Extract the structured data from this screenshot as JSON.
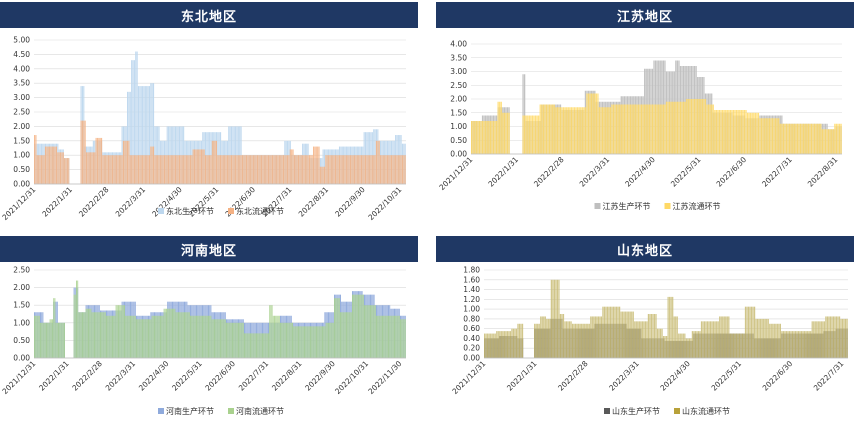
{
  "chart_data": [
    {
      "type": "bar",
      "title": "东北地区",
      "ylim": [
        0,
        5
      ],
      "yticks": [
        "0.00",
        "0.50",
        "1.00",
        "1.50",
        "2.00",
        "2.50",
        "3.00",
        "3.50",
        "4.00",
        "4.50",
        "5.00"
      ],
      "xticks": [
        "2021/12/31",
        "2022/1/31",
        "2022/2/28",
        "2022/3/31",
        "2022/4/30",
        "2022/5/31",
        "2022/6/30",
        "2022/7/31",
        "2022/8/31",
        "2022/9/30",
        "2022/10/31"
      ],
      "legend": "bottom",
      "series": [
        {
          "name": "东北生产环节",
          "color": "#bdd7ee",
          "segments": [
            [
              0,
              1.4
            ],
            [
              9,
              1.4
            ],
            [
              18,
              1.2
            ],
            [
              22,
              0.9
            ],
            [
              24,
              0.9
            ],
            [
              26,
              0
            ],
            [
              34,
              3.4
            ],
            [
              37,
              1.3
            ],
            [
              43,
              1.5
            ],
            [
              50,
              1.1
            ],
            [
              57,
              1.1
            ],
            [
              64,
              2.0
            ],
            [
              68,
              3.2
            ],
            [
              71,
              4.3
            ],
            [
              74,
              4.6
            ],
            [
              76,
              3.4
            ],
            [
              85,
              3.5
            ],
            [
              88,
              2.0
            ],
            [
              92,
              1.5
            ],
            [
              97,
              2.0
            ],
            [
              110,
              1.5
            ],
            [
              117,
              1.5
            ],
            [
              123,
              1.8
            ],
            [
              137,
              1.5
            ],
            [
              142,
              2.0
            ],
            [
              152,
              1.0
            ],
            [
              183,
              1.5
            ],
            [
              188,
              1.0
            ],
            [
              196,
              1.4
            ],
            [
              201,
              0.9
            ],
            [
              211,
              1.2
            ],
            [
              223,
              1.3
            ],
            [
              241,
              1.8
            ],
            [
              248,
              1.9
            ],
            [
              252,
              1.5
            ],
            [
              258,
              1.5
            ],
            [
              264,
              1.7
            ],
            [
              269,
              1.4
            ]
          ]
        },
        {
          "name": "东北流通环节",
          "color": "#f4b183",
          "segments": [
            [
              0,
              1.7
            ],
            [
              2,
              1.0
            ],
            [
              8,
              1.3
            ],
            [
              17,
              1.1
            ],
            [
              22,
              0.9
            ],
            [
              26,
              0
            ],
            [
              34,
              2.2
            ],
            [
              38,
              1.1
            ],
            [
              45,
              1.6
            ],
            [
              50,
              1.0
            ],
            [
              65,
              1.5
            ],
            [
              70,
              1.0
            ],
            [
              85,
              1.3
            ],
            [
              88,
              1.0
            ],
            [
              116,
              1.2
            ],
            [
              125,
              1.0
            ],
            [
              130,
              1.5
            ],
            [
              134,
              1.0
            ],
            [
              155,
              1.0
            ],
            [
              187,
              1.2
            ],
            [
              190,
              1.0
            ],
            [
              204,
              1.3
            ],
            [
              209,
              0.6
            ],
            [
              213,
              1.0
            ],
            [
              236,
              1.0
            ],
            [
              250,
              1.5
            ],
            [
              253,
              1.0
            ],
            [
              269,
              1.0
            ]
          ]
        }
      ]
    },
    {
      "type": "bar",
      "title": "江苏地区",
      "ylim": [
        0,
        4
      ],
      "yticks": [
        "0.00",
        "0.50",
        "1.00",
        "1.50",
        "2.00",
        "2.50",
        "3.00",
        "3.50",
        "4.00"
      ],
      "xticks": [
        "2021/12/31",
        "2022/1/31",
        "2022/2/28",
        "2022/3/31",
        "2022/4/30",
        "2022/5/31",
        "2022/6/30",
        "2022/7/31",
        "2022/8/31"
      ],
      "legend": "bottom",
      "series": [
        {
          "name": "江苏生产环节",
          "color": "#bfbfbf",
          "segments": [
            [
              0,
              1.2
            ],
            [
              7,
              1.4
            ],
            [
              17,
              1.7
            ],
            [
              25,
              0
            ],
            [
              33,
              2.9
            ],
            [
              35,
              1.2
            ],
            [
              45,
              1.8
            ],
            [
              58,
              1.6
            ],
            [
              73,
              2.3
            ],
            [
              80,
              1.9
            ],
            [
              96,
              2.1
            ],
            [
              111,
              3.1
            ],
            [
              117,
              3.4
            ],
            [
              125,
              3.0
            ],
            [
              131,
              3.4
            ],
            [
              134,
              3.2
            ],
            [
              140,
              3.2
            ],
            [
              145,
              2.8
            ],
            [
              150,
              2.2
            ],
            [
              155,
              1.5
            ],
            [
              168,
              1.4
            ],
            [
              176,
              1.3
            ],
            [
              185,
              1.4
            ],
            [
              200,
              1.1
            ],
            [
              229,
              0.9
            ],
            [
              234,
              1.0
            ]
          ]
        },
        {
          "name": "江苏流通环节",
          "color": "#ffd966",
          "segments": [
            [
              0,
              1.2
            ],
            [
              17,
              1.9
            ],
            [
              20,
              1.5
            ],
            [
              25,
              0
            ],
            [
              33,
              1.4
            ],
            [
              44,
              1.8
            ],
            [
              54,
              1.7
            ],
            [
              74,
              2.2
            ],
            [
              82,
              1.7
            ],
            [
              90,
              1.8
            ],
            [
              125,
              1.9
            ],
            [
              138,
              2.0
            ],
            [
              151,
              1.8
            ],
            [
              156,
              1.6
            ],
            [
              177,
              1.5
            ],
            [
              185,
              1.3
            ],
            [
              198,
              1.1
            ],
            [
              225,
              0.9
            ],
            [
              233,
              1.1
            ]
          ]
        }
      ]
    },
    {
      "type": "bar",
      "title": "河南地区",
      "ylim": [
        0,
        2.5
      ],
      "yticks": [
        "0.00",
        "0.50",
        "1.00",
        "1.50",
        "2.00",
        "2.50"
      ],
      "xticks": [
        "2021/12/31",
        "2022/1/31",
        "2022/2/28",
        "2022/3/31",
        "2022/4/30",
        "2022/5/31",
        "2022/6/30",
        "2022/7/31",
        "2022/8/31",
        "2022/9/30",
        "2022/10/31",
        "2022/11/30"
      ],
      "legend": "bottom",
      "series": [
        {
          "name": "河南生产环节",
          "color": "#8faadc",
          "segments": [
            [
              0,
              1.3
            ],
            [
              8,
              1.0
            ],
            [
              16,
              1.6
            ],
            [
              20,
              1.0
            ],
            [
              26,
              0
            ],
            [
              33,
              2.0
            ],
            [
              37,
              1.3
            ],
            [
              43,
              1.5
            ],
            [
              55,
              1.35
            ],
            [
              73,
              1.6
            ],
            [
              85,
              1.2
            ],
            [
              97,
              1.3
            ],
            [
              111,
              1.6
            ],
            [
              128,
              1.5
            ],
            [
              148,
              1.3
            ],
            [
              160,
              1.1
            ],
            [
              175,
              1.0
            ],
            [
              189,
              1.0
            ],
            [
              205,
              1.2
            ],
            [
              215,
              1.0
            ],
            [
              232,
              1.0
            ],
            [
              242,
              1.3
            ],
            [
              250,
              1.8
            ],
            [
              256,
              1.6
            ],
            [
              265,
              1.9
            ],
            [
              274,
              1.8
            ],
            [
              284,
              1.5
            ],
            [
              297,
              1.4
            ],
            [
              305,
              1.2
            ]
          ]
        },
        {
          "name": "河南流通环节",
          "color": "#a9d18e",
          "segments": [
            [
              0,
              1.2
            ],
            [
              5,
              1.0
            ],
            [
              13,
              1.1
            ],
            [
              16,
              1.7
            ],
            [
              18,
              1.0
            ],
            [
              26,
              0
            ],
            [
              33,
              1.8
            ],
            [
              35,
              2.2
            ],
            [
              37,
              1.3
            ],
            [
              43,
              1.4
            ],
            [
              48,
              1.3
            ],
            [
              60,
              1.2
            ],
            [
              68,
              1.5
            ],
            [
              76,
              1.2
            ],
            [
              85,
              1.1
            ],
            [
              98,
              1.2
            ],
            [
              108,
              1.4
            ],
            [
              118,
              1.3
            ],
            [
              130,
              1.2
            ],
            [
              148,
              1.1
            ],
            [
              160,
              1.0
            ],
            [
              175,
              0.7
            ],
            [
              196,
              1.5
            ],
            [
              199,
              1.2
            ],
            [
              205,
              1.0
            ],
            [
              216,
              0.9
            ],
            [
              243,
              1.0
            ],
            [
              250,
              1.7
            ],
            [
              255,
              1.3
            ],
            [
              265,
              1.8
            ],
            [
              275,
              1.5
            ],
            [
              285,
              1.2
            ],
            [
              305,
              1.1
            ]
          ]
        }
      ]
    },
    {
      "type": "bar",
      "title": "山东地区",
      "ylim": [
        0,
        1.8
      ],
      "yticks": [
        "0.00",
        "0.20",
        "0.40",
        "0.60",
        "0.80",
        "1.00",
        "1.20",
        "1.40",
        "1.60",
        "1.80"
      ],
      "xticks": [
        "2021/12/31",
        "2022/1/31",
        "2022/2/28",
        "2022/3/31",
        "2022/4/30",
        "2022/5/31",
        "2022/6/30",
        "2022/7/31"
      ],
      "legend": "bottom",
      "series": [
        {
          "name": "山东生产环节",
          "color": "#595959",
          "segments": [
            [
              0,
              0.4
            ],
            [
              10,
              0.45
            ],
            [
              22,
              0.4
            ],
            [
              26,
              0
            ],
            [
              33,
              0.6
            ],
            [
              40,
              0.6
            ],
            [
              44,
              0.8
            ],
            [
              52,
              0.6
            ],
            [
              73,
              0.7
            ],
            [
              94,
              0.6
            ],
            [
              104,
              0.4
            ],
            [
              119,
              0.35
            ],
            [
              125,
              0.35
            ],
            [
              138,
              0.5
            ],
            [
              165,
              0.5
            ],
            [
              178,
              0.4
            ],
            [
              196,
              0.5
            ],
            [
              212,
              0.5
            ],
            [
              224,
              0.55
            ],
            [
              232,
              0.6
            ]
          ]
        },
        {
          "name": "山东流通环节",
          "color": "#c9bc76",
          "segments": [
            [
              0,
              0.5
            ],
            [
              8,
              0.55
            ],
            [
              18,
              0.6
            ],
            [
              22,
              0.7
            ],
            [
              26,
              0
            ],
            [
              33,
              0.7
            ],
            [
              37,
              0.85
            ],
            [
              41,
              0.8
            ],
            [
              44,
              1.6
            ],
            [
              50,
              0.9
            ],
            [
              53,
              0.75
            ],
            [
              58,
              0.7
            ],
            [
              70,
              0.85
            ],
            [
              78,
              1.05
            ],
            [
              90,
              0.95
            ],
            [
              99,
              0.75
            ],
            [
              108,
              0.9
            ],
            [
              114,
              0.6
            ],
            [
              118,
              0.45
            ],
            [
              121,
              1.25
            ],
            [
              125,
              0.85
            ],
            [
              128,
              0.5
            ],
            [
              133,
              0.4
            ],
            [
              137,
              0.55
            ],
            [
              143,
              0.75
            ],
            [
              155,
              0.85
            ],
            [
              162,
              0.5
            ],
            [
              172,
              1.05
            ],
            [
              179,
              0.8
            ],
            [
              188,
              0.7
            ],
            [
              196,
              0.55
            ],
            [
              210,
              0.55
            ],
            [
              216,
              0.75
            ],
            [
              225,
              0.85
            ],
            [
              235,
              0.8
            ]
          ]
        }
      ]
    }
  ]
}
